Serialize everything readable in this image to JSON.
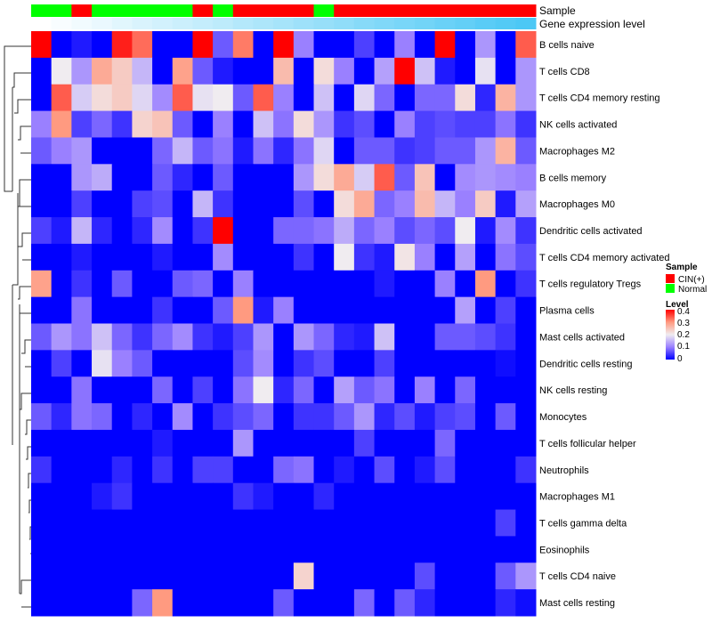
{
  "chart_data": {
    "type": "heatmap",
    "title": "",
    "annotation_labels": {
      "sample": "Sample",
      "gene_expression": "Gene expression level"
    },
    "legend": {
      "sample_title": "Sample",
      "sample_entries": [
        {
          "label": "CIN(+)",
          "color": "#ff0000"
        },
        {
          "label": "Normal",
          "color": "#00ff00"
        }
      ],
      "level_title": "Level",
      "level_ticks": [
        "0.4",
        "0.3",
        "0.2",
        "0.1",
        "0"
      ],
      "range": [
        0,
        0.4
      ],
      "colors": {
        "low": "#0000ff",
        "mid": "#f0ecf0",
        "high": "#ff0000"
      },
      "placement": "right"
    },
    "sample_groups": [
      "Normal",
      "Normal",
      "CIN(+)",
      "Normal",
      "Normal",
      "Normal",
      "Normal",
      "Normal",
      "CIN(+)",
      "Normal",
      "CIN(+)",
      "CIN(+)",
      "CIN(+)",
      "CIN(+)",
      "Normal",
      "CIN(+)",
      "CIN(+)",
      "CIN(+)",
      "CIN(+)",
      "CIN(+)",
      "CIN(+)",
      "CIN(+)",
      "CIN(+)",
      "CIN(+)",
      "CIN(+)"
    ],
    "gene_expression_level": [
      0,
      0.04,
      0.08,
      0.12,
      0.17,
      0.21,
      0.25,
      0.29,
      0.33,
      0.37,
      0.42,
      0.46,
      0.5,
      0.54,
      0.58,
      0.62,
      0.67,
      0.71,
      0.75,
      0.79,
      0.83,
      0.87,
      0.92,
      0.96,
      1.0
    ],
    "gene_expression_colors": {
      "low": "#ffffff",
      "high": "#4cc8f5"
    },
    "rows": [
      "B cells naive",
      "T cells CD8",
      "T cells CD4 memory resting",
      "NK cells activated",
      "Macrophages M2",
      "B cells memory",
      "Macrophages M0",
      "Dendritic cells activated",
      "T cells CD4 memory activated",
      "T cells regulatory  Tregs",
      "Plasma cells",
      "Mast cells activated",
      "Dendritic cells resting",
      "NK cells resting",
      "Monocytes",
      "T cells follicular helper",
      "Neutrophils",
      "Macrophages M1",
      "T cells gamma delta",
      "Eosinophils",
      "T cells CD4 naive",
      "Mast cells resting"
    ],
    "values": [
      [
        0.4,
        0,
        0.02,
        0,
        0.38,
        0.33,
        0,
        0,
        0.4,
        0.07,
        0.32,
        0,
        0.4,
        0.1,
        0,
        0,
        0.05,
        0,
        0.1,
        0,
        0.4,
        0,
        0.12,
        0,
        0.34
      ],
      [
        0,
        0.2,
        0.12,
        0.28,
        0.24,
        0.15,
        0,
        0.29,
        0.07,
        0.02,
        0,
        0,
        0.26,
        0,
        0.22,
        0.1,
        0,
        0.13,
        0.4,
        0.16,
        0.02,
        0,
        0.19,
        0,
        0.12
      ],
      [
        0,
        0.34,
        0.17,
        0.22,
        0.24,
        0.18,
        0.11,
        0.34,
        0.19,
        0.2,
        0.07,
        0.34,
        0.1,
        0,
        0.16,
        0,
        0.18,
        0.08,
        0,
        0.08,
        0.08,
        0.22,
        0.03,
        0.27,
        0.12
      ],
      [
        0.1,
        0.3,
        0.05,
        0.08,
        0.04,
        0.23,
        0.25,
        0.07,
        0,
        0.1,
        0,
        0.16,
        0.09,
        0.22,
        0.12,
        0.04,
        0.06,
        0,
        0.1,
        0.05,
        0.06,
        0.05,
        0.05,
        0.09,
        0.04
      ],
      [
        0.07,
        0.1,
        0.12,
        0,
        0,
        0,
        0.08,
        0.15,
        0.07,
        0.09,
        0.02,
        0.09,
        0.03,
        0.09,
        0.18,
        0,
        0.07,
        0.07,
        0.04,
        0.05,
        0.07,
        0.07,
        0.12,
        0.27,
        0.07
      ],
      [
        0,
        0,
        0.12,
        0.14,
        0,
        0,
        0.07,
        0.03,
        0,
        0.07,
        0,
        0,
        0,
        0.12,
        0.22,
        0.28,
        0.17,
        0.34,
        0.07,
        0.25,
        0,
        0.11,
        0.12,
        0.11,
        0.1
      ],
      [
        0,
        0,
        0.05,
        0,
        0,
        0.05,
        0.06,
        0,
        0.15,
        0.04,
        0,
        0,
        0,
        0.06,
        0,
        0.22,
        0.28,
        0.08,
        0.1,
        0.26,
        0.15,
        0.1,
        0.24,
        0.02,
        0.13
      ],
      [
        0.05,
        0.02,
        0.15,
        0.03,
        0,
        0.03,
        0.11,
        0,
        0.04,
        0.4,
        0,
        0,
        0.08,
        0.08,
        0.09,
        0.14,
        0.08,
        0.1,
        0.06,
        0.08,
        0.06,
        0.2,
        0.02,
        0.11,
        0.04
      ],
      [
        0,
        0,
        0.02,
        0,
        0,
        0,
        0.02,
        0,
        0,
        0.11,
        0,
        0,
        0,
        0.04,
        0,
        0.2,
        0.04,
        0.02,
        0.21,
        0.1,
        0,
        0.13,
        0,
        0.09,
        0.06
      ],
      [
        0.29,
        0,
        0.04,
        0,
        0.07,
        0,
        0,
        0.07,
        0.08,
        0,
        0.1,
        0,
        0,
        0,
        0,
        0,
        0,
        0.02,
        0,
        0,
        0.1,
        0,
        0.3,
        0,
        0.04
      ],
      [
        0,
        0,
        0.09,
        0,
        0,
        0,
        0.04,
        0,
        0,
        0.07,
        0.3,
        0.02,
        0.1,
        0,
        0,
        0,
        0,
        0,
        0,
        0,
        0,
        0.13,
        0,
        0.05,
        0
      ],
      [
        0.07,
        0.12,
        0.09,
        0.16,
        0.08,
        0.04,
        0.08,
        0.11,
        0.04,
        0.02,
        0.05,
        0.12,
        0,
        0.12,
        0.08,
        0.03,
        0.02,
        0.16,
        0,
        0,
        0.07,
        0.07,
        0.06,
        0.04,
        0
      ],
      [
        0,
        0.05,
        0,
        0.19,
        0.1,
        0.07,
        0,
        0,
        0,
        0,
        0.06,
        0.11,
        0,
        0.04,
        0.06,
        0,
        0,
        0.05,
        0,
        0,
        0,
        0,
        0,
        0.01,
        0
      ],
      [
        0,
        0,
        0.09,
        0,
        0,
        0,
        0.08,
        0,
        0.05,
        0,
        0.09,
        0.2,
        0.03,
        0.08,
        0,
        0.13,
        0.07,
        0.09,
        0,
        0.1,
        0,
        0.08,
        0,
        0,
        0
      ],
      [
        0.07,
        0.03,
        0.09,
        0.08,
        0,
        0.03,
        0,
        0.11,
        0,
        0.04,
        0.06,
        0.08,
        0,
        0.04,
        0.04,
        0.07,
        0.12,
        0.03,
        0.06,
        0.02,
        0.05,
        0.06,
        0,
        0.07,
        0
      ],
      [
        0,
        0,
        0,
        0,
        0,
        0,
        0.02,
        0,
        0,
        0,
        0.12,
        0,
        0,
        0,
        0,
        0,
        0.05,
        0,
        0,
        0,
        0.08,
        0,
        0,
        0,
        0
      ],
      [
        0.04,
        0,
        0,
        0,
        0.03,
        0,
        0.04,
        0,
        0.05,
        0.05,
        0,
        0,
        0.08,
        0.09,
        0,
        0.02,
        0,
        0.06,
        0,
        0.02,
        0.06,
        0,
        0,
        0,
        0.04
      ],
      [
        0,
        0,
        0,
        0.02,
        0.04,
        0,
        0,
        0,
        0,
        0,
        0.04,
        0.02,
        0,
        0,
        0.03,
        0,
        0,
        0,
        0,
        0,
        0,
        0,
        0,
        0,
        0
      ],
      [
        0,
        0,
        0,
        0,
        0,
        0,
        0,
        0,
        0,
        0,
        0,
        0,
        0,
        0,
        0,
        0,
        0,
        0,
        0,
        0,
        0,
        0,
        0,
        0.05,
        0
      ],
      [
        0,
        0,
        0,
        0,
        0,
        0,
        0,
        0,
        0,
        0,
        0,
        0,
        0,
        0,
        0,
        0,
        0,
        0,
        0,
        0,
        0,
        0,
        0,
        0,
        0
      ],
      [
        0,
        0,
        0,
        0,
        0,
        0,
        0,
        0,
        0,
        0,
        0,
        0,
        0,
        0.23,
        0,
        0,
        0,
        0,
        0,
        0.06,
        0,
        0,
        0,
        0.07,
        0.12
      ],
      [
        0,
        0,
        0,
        0,
        0,
        0.08,
        0.3,
        0,
        0,
        0,
        0,
        0,
        0.07,
        0,
        0,
        0,
        0.08,
        0,
        0.07,
        0.03,
        0,
        0,
        0,
        0.03,
        0.01
      ]
    ]
  }
}
